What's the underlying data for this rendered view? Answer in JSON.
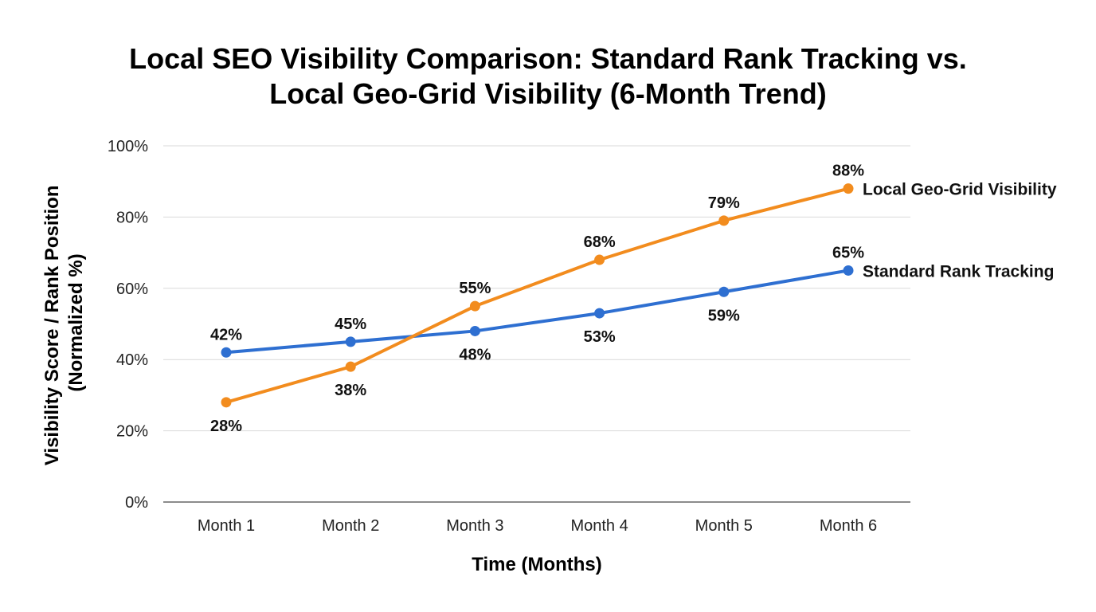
{
  "title_lines": [
    "Local SEO Visibility Comparison: Standard Rank Tracking vs.",
    "Local Geo-Grid Visibility (6-Month Trend)"
  ],
  "chart_data": {
    "type": "line",
    "title": "Local SEO Visibility Comparison: Standard Rank Tracking vs. Local Geo-Grid Visibility (6-Month Trend)",
    "xlabel": "Time (Months)",
    "ylabel_lines": [
      "Visibility Score / Rank Position",
      "(Normalized %)"
    ],
    "categories": [
      "Month 1",
      "Month 2",
      "Month 3",
      "Month 4",
      "Month 5",
      "Month 6"
    ],
    "ylim": [
      0,
      100
    ],
    "yticks": [
      0,
      20,
      40,
      60,
      80,
      100
    ],
    "ytick_labels": [
      "0%",
      "20%",
      "40%",
      "60%",
      "80%",
      "100%"
    ],
    "grid": true,
    "legend": "end-of-line labels",
    "series": [
      {
        "name": "Standard Rank Tracking",
        "color": "#2e6fd1",
        "values": [
          42,
          45,
          48,
          53,
          59,
          65
        ],
        "labels": [
          "42%",
          "45%",
          "48%",
          "53%",
          "59%",
          "65%"
        ],
        "label_position": [
          "above",
          "above",
          "below",
          "below",
          "below",
          "above"
        ]
      },
      {
        "name": "Local Geo-Grid Visibility",
        "color": "#f28c1e",
        "values": [
          28,
          38,
          55,
          68,
          79,
          88
        ],
        "labels": [
          "28%",
          "38%",
          "55%",
          "68%",
          "79%",
          "88%"
        ],
        "label_position": [
          "below",
          "below",
          "above",
          "above",
          "above",
          "above"
        ]
      }
    ]
  }
}
